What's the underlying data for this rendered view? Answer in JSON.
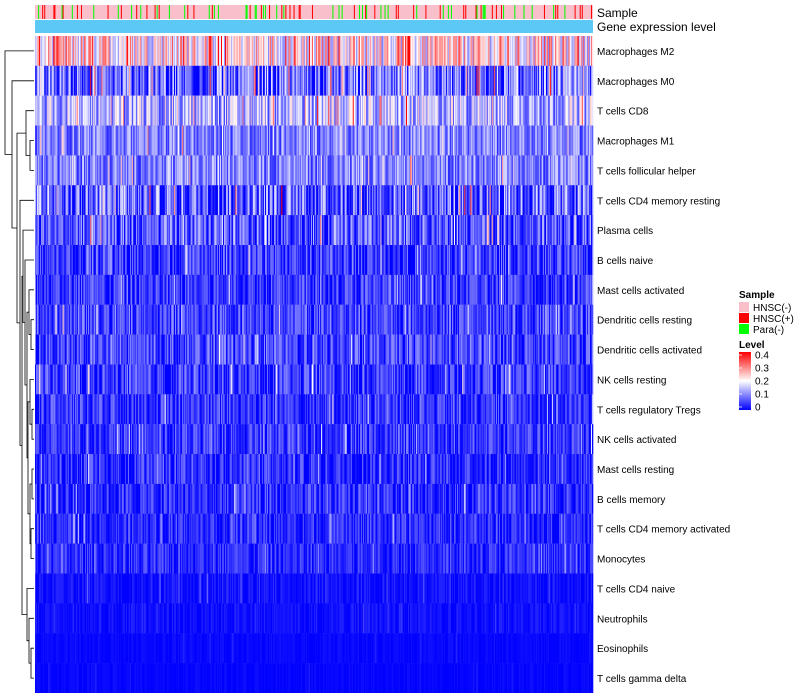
{
  "chart_data": {
    "type": "heatmap",
    "title": "",
    "annotation_tracks": [
      {
        "name": "Sample",
        "label": "Sample"
      },
      {
        "name": "Gene expression level",
        "label": "Gene expression level"
      }
    ],
    "rows": [
      {
        "label": "Macrophages M2",
        "mean": 0.22,
        "spread": 0.12
      },
      {
        "label": "Macrophages M0",
        "mean": 0.07,
        "spread": 0.12
      },
      {
        "label": "T cells CD8",
        "mean": 0.14,
        "spread": 0.1
      },
      {
        "label": "Macrophages M1",
        "mean": 0.1,
        "spread": 0.07
      },
      {
        "label": "T cells follicular helper",
        "mean": 0.1,
        "spread": 0.07
      },
      {
        "label": "T cells CD4 memory resting",
        "mean": 0.07,
        "spread": 0.12
      },
      {
        "label": "Plasma cells",
        "mean": 0.06,
        "spread": 0.09
      },
      {
        "label": "B cells naive",
        "mean": 0.04,
        "spread": 0.07
      },
      {
        "label": "Mast cells activated",
        "mean": 0.04,
        "spread": 0.07
      },
      {
        "label": "Dendritic cells resting",
        "mean": 0.05,
        "spread": 0.07
      },
      {
        "label": "Dendritic cells activated",
        "mean": 0.05,
        "spread": 0.07
      },
      {
        "label": "NK cells resting",
        "mean": 0.04,
        "spread": 0.07
      },
      {
        "label": "T cells regulatory  Tregs",
        "mean": 0.04,
        "spread": 0.06
      },
      {
        "label": "NK cells activated",
        "mean": 0.04,
        "spread": 0.06
      },
      {
        "label": "Mast cells resting",
        "mean": 0.03,
        "spread": 0.06
      },
      {
        "label": "B cells memory",
        "mean": 0.03,
        "spread": 0.06
      },
      {
        "label": "T cells CD4 memory activated",
        "mean": 0.03,
        "spread": 0.05
      },
      {
        "label": "Monocytes",
        "mean": 0.03,
        "spread": 0.05
      },
      {
        "label": "T cells CD4 naive",
        "mean": 0.01,
        "spread": 0.03
      },
      {
        "label": "Neutrophils",
        "mean": 0.01,
        "spread": 0.02
      },
      {
        "label": "Eosinophils",
        "mean": 0.005,
        "spread": 0.01
      },
      {
        "label": "T cells gamma delta",
        "mean": 0.003,
        "spread": 0.01
      }
    ],
    "n_samples": 546,
    "sample_composition": {
      "HNSC(-)": 0.82,
      "HNSC(+)": 0.09,
      "Para(-)": 0.09
    },
    "legend": {
      "position": "right",
      "sample": {
        "title": "Sample",
        "items": [
          {
            "label": "HNSC(-)",
            "color": "#F9C0CB"
          },
          {
            "label": "HNSC(+)",
            "color": "#FF0000"
          },
          {
            "label": "Para(-)",
            "color": "#00FF00"
          }
        ]
      },
      "level": {
        "title": "Level",
        "ticks": [
          "0.4",
          "0.3",
          "0.2",
          "0.1",
          "0"
        ],
        "range": [
          0,
          0.4
        ]
      }
    },
    "expression_track_color": "#5BC8F5",
    "color_scale": {
      "low": "#0000FF",
      "mid": "#FFFFFF",
      "high": "#FF0000",
      "domain": [
        0,
        0.2,
        0.4
      ]
    },
    "dendrogram": "left"
  }
}
